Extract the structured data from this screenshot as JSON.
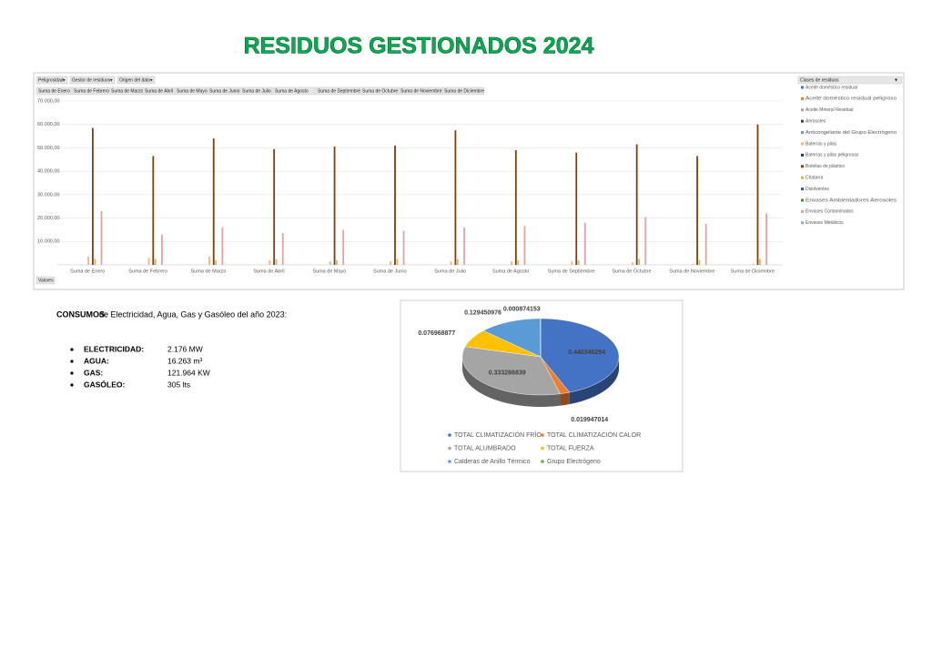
{
  "title": "RESIDUOS GESTIONADOS 2024",
  "chart_data": [
    {
      "type": "bar",
      "filters": [
        "Peligrosidad",
        "Gestor de residuos",
        "Origen del dato"
      ],
      "values_button": "Valores",
      "legend_title": "Clases de residuos",
      "categories": [
        "Suma de Enero",
        "Suma de Febrero",
        "Suma de Marzo",
        "Suma de Abril",
        "Suma de Mayo",
        "Suma de Junio",
        "Suma de Julio",
        "Suma de Agosto",
        "Suma de Septiembre",
        "Suma de Octubre",
        "Suma de Noviembre",
        "Suma de Diciembre"
      ],
      "ylim": [
        0,
        70000
      ],
      "yticks": [
        {
          "value": 10000,
          "label": "10.000,00"
        },
        {
          "value": 20000,
          "label": "20.000,00"
        },
        {
          "value": 30000,
          "label": "30.000,00"
        },
        {
          "value": 40000,
          "label": "40.000,00"
        },
        {
          "value": 50000,
          "label": "50.000,00"
        },
        {
          "value": 60000,
          "label": "60.000,00"
        },
        {
          "value": 70000,
          "label": "70.000,00"
        }
      ],
      "grid": true,
      "legend": "right",
      "series": [
        {
          "name": "Aceite doméstico residual",
          "color": "#4472c4",
          "values": [
            0,
            0,
            0,
            0,
            0,
            0,
            0,
            0,
            0,
            0,
            0,
            0
          ]
        },
        {
          "name": "Aceite doméstico residual peligroso",
          "color": "#ed7d31",
          "values": [
            0,
            0,
            0,
            0,
            0,
            0,
            0,
            0,
            0,
            0,
            0,
            0
          ]
        },
        {
          "name": "Aceite Mineral Residual",
          "color": "#a5a5a5",
          "values": [
            0,
            0,
            0,
            0,
            0,
            0,
            0,
            0,
            0,
            0,
            0,
            0
          ]
        },
        {
          "name": "Aerosoles",
          "color": "#264478",
          "values": [
            0,
            0,
            0,
            0,
            0,
            0,
            0,
            0,
            0,
            0,
            0,
            0
          ]
        },
        {
          "name": "Anticongelante del Grupo Electrógeno",
          "color": "#5b9bd5",
          "values": [
            0,
            0,
            0,
            0,
            0,
            0,
            0,
            0,
            0,
            0,
            0,
            0
          ]
        },
        {
          "name": "Baterías y pilas",
          "color": "#f4b183",
          "values": [
            3500,
            3000,
            3500,
            2000,
            1500,
            1500,
            1500,
            1500,
            1500,
            1000,
            500,
            500
          ]
        },
        {
          "name": "Baterías y pilas peligrosas",
          "color": "#1f3864",
          "values": [
            0,
            0,
            0,
            0,
            0,
            0,
            0,
            0,
            0,
            0,
            0,
            0
          ]
        },
        {
          "name": "Botellas de plástico",
          "color": "#843c0c",
          "values": [
            58500,
            46500,
            54000,
            49500,
            50500,
            51000,
            57500,
            49000,
            48000,
            51500,
            46500,
            60000
          ]
        },
        {
          "name": "Chatarra",
          "color": "#d6b656",
          "values": [
            2500,
            2500,
            2000,
            2500,
            2000,
            2500,
            2500,
            2000,
            2000,
            2500,
            2000,
            2500
          ]
        },
        {
          "name": "Disolventes",
          "color": "#2f5597",
          "values": [
            0,
            0,
            0,
            0,
            0,
            0,
            0,
            0,
            0,
            0,
            0,
            0
          ]
        },
        {
          "name": "Envases Ambientadores Aerosoles",
          "color": "#548235",
          "values": [
            0,
            0,
            0,
            0,
            0,
            0,
            0,
            0,
            0,
            0,
            0,
            0
          ]
        },
        {
          "name": "Envases Contaminados",
          "color": "#e6a2a2",
          "values": [
            23000,
            13000,
            16000,
            13500,
            15000,
            14500,
            16000,
            16500,
            18000,
            20500,
            17500,
            22000
          ]
        },
        {
          "name": "Envases Metálicos",
          "color": "#8faadc",
          "values": [
            0,
            0,
            0,
            0,
            0,
            0,
            0,
            0,
            0,
            0,
            0,
            0
          ]
        }
      ]
    },
    {
      "type": "pie",
      "categories": [
        "TOTAL CLIMATIZACIÓN FRÍO",
        "TOTAL CLIMATIZACIÓN CALOR",
        "TOTAL ALUMBRADO",
        "TOTAL FUERZA",
        "Calderas de Anillo Térmico",
        "Grupo Electrógeno"
      ],
      "values": [
        0.440346294,
        0.019947014,
        0.333286839,
        0.076968877,
        0.129450976,
        0.000874153
      ],
      "colors": [
        "#4472c4",
        "#ed7d31",
        "#a5a5a5",
        "#ffc000",
        "#5b9bd5",
        "#70ad47"
      ],
      "legend": "bottom"
    }
  ],
  "consumption": {
    "intro_bold": "CONSUMOS",
    "intro": "de Electricidad, Agua, Gas y Gasóleo del año 2023:",
    "items": [
      {
        "label": "ELECTRICIDAD:",
        "value": "2.176 MW"
      },
      {
        "label": "AGUA:",
        "value": "16.263 m³"
      },
      {
        "label": "GAS:",
        "value": "121.964 KW"
      },
      {
        "label": "GASÓLEO:",
        "value": "305 lts"
      }
    ]
  }
}
